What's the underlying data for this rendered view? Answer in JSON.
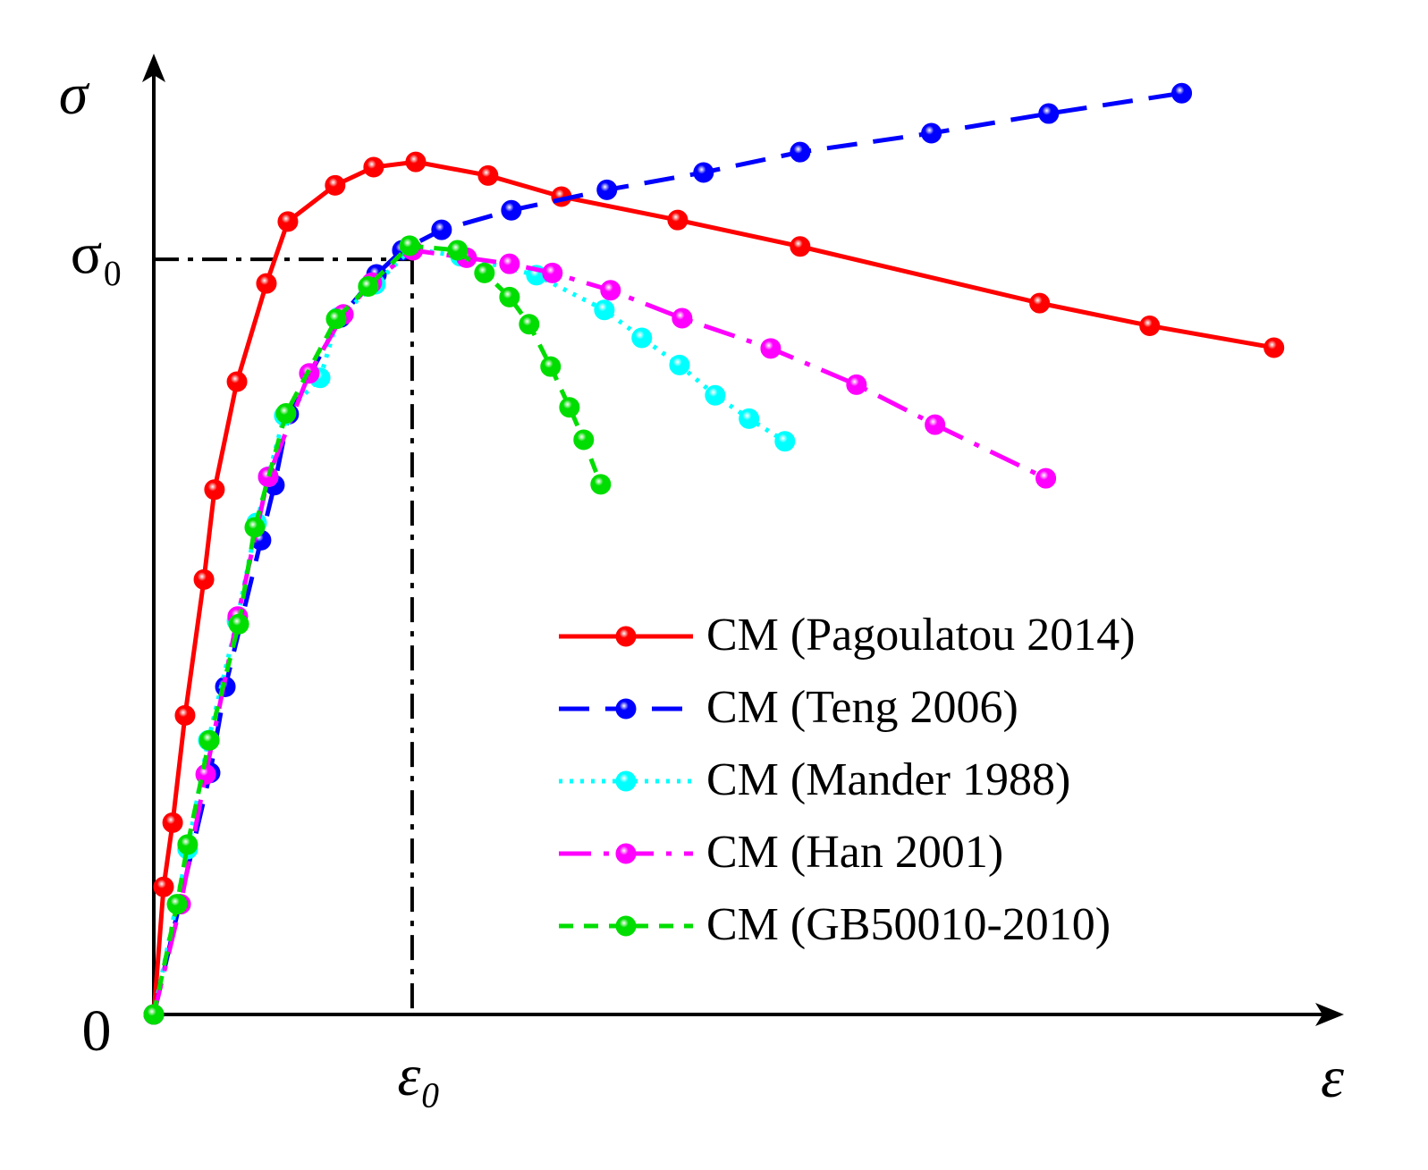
{
  "chart_data": {
    "type": "line",
    "xlabel": "ε",
    "ylabel": "σ",
    "xlim": [
      0,
      4.6
    ],
    "ylim": [
      0,
      1.27
    ],
    "xticks": [
      {
        "value": 1,
        "label": "ε₀"
      }
    ],
    "yticks": [
      0,
      {
        "value": 1,
        "label": "σ₀"
      }
    ],
    "legend": "lower right",
    "series": [
      {
        "name": "CM (Pagoulatou 2014)",
        "color": "#ff0000",
        "linestyle": "solid",
        "x": [
          0,
          0.038,
          0.073,
          0.121,
          0.194,
          0.235,
          0.322,
          0.436,
          0.519,
          0.702,
          0.851,
          1.014,
          1.294,
          1.578,
          2.028,
          2.502,
          3.429,
          3.855,
          4.336
        ],
        "values": [
          0,
          0.169,
          0.254,
          0.396,
          0.576,
          0.695,
          0.838,
          0.968,
          1.05,
          1.098,
          1.122,
          1.129,
          1.111,
          1.083,
          1.052,
          1.017,
          0.942,
          0.912,
          0.883
        ]
      },
      {
        "name": "CM (Teng 2006)",
        "color": "#0000ff",
        "linestyle": "dashed",
        "x": [
          0,
          0.218,
          0.277,
          0.415,
          0.467,
          0.522,
          0.723,
          0.862,
          0.962,
          1.114,
          1.384,
          1.754,
          2.128,
          2.502,
          3.01,
          3.464,
          3.979
        ],
        "values": [
          0,
          0.32,
          0.434,
          0.628,
          0.701,
          0.795,
          0.923,
          0.98,
          1.012,
          1.039,
          1.065,
          1.092,
          1.115,
          1.142,
          1.167,
          1.193,
          1.22
        ]
      },
      {
        "name": "CM (Mander 1988)",
        "color": "#00ffff",
        "linestyle": "dotted",
        "x": [
          0,
          0.131,
          0.211,
          0.322,
          0.398,
          0.443,
          0.505,
          0.644,
          0.713,
          0.858,
          0.997,
          1.187,
          1.481,
          1.744,
          1.889,
          2.035,
          2.173,
          2.304,
          2.443
        ],
        "values": [
          0,
          0.219,
          0.363,
          0.521,
          0.651,
          0.712,
          0.793,
          0.843,
          0.923,
          0.967,
          1.014,
          1.004,
          0.979,
          0.933,
          0.896,
          0.86,
          0.82,
          0.789,
          0.759
        ]
      },
      {
        "name": "CM (Han 2001)",
        "color": "#ff00ff",
        "linestyle": "dashdot",
        "x": [
          0,
          0.104,
          0.201,
          0.325,
          0.443,
          0.602,
          0.734,
          0.844,
          1.003,
          1.211,
          1.377,
          1.543,
          1.768,
          2.045,
          2.388,
          2.72,
          3.024,
          3.453
        ],
        "values": [
          0,
          0.146,
          0.318,
          0.527,
          0.712,
          0.849,
          0.927,
          0.969,
          1.012,
          1.002,
          0.994,
          0.982,
          0.959,
          0.922,
          0.882,
          0.834,
          0.781,
          0.71
        ]
      },
      {
        "name": "CM (GB50010-2010)",
        "color": "#00dd00",
        "linestyle": "shortdash",
        "x": [
          0,
          0.09,
          0.131,
          0.215,
          0.329,
          0.391,
          0.512,
          0.706,
          0.83,
          0.99,
          1.176,
          1.28,
          1.377,
          1.453,
          1.536,
          1.609,
          1.664,
          1.73
        ],
        "values": [
          0,
          0.146,
          0.225,
          0.363,
          0.517,
          0.645,
          0.796,
          0.921,
          0.964,
          1.018,
          1.012,
          0.982,
          0.95,
          0.914,
          0.858,
          0.804,
          0.761,
          0.702
        ]
      }
    ]
  }
}
